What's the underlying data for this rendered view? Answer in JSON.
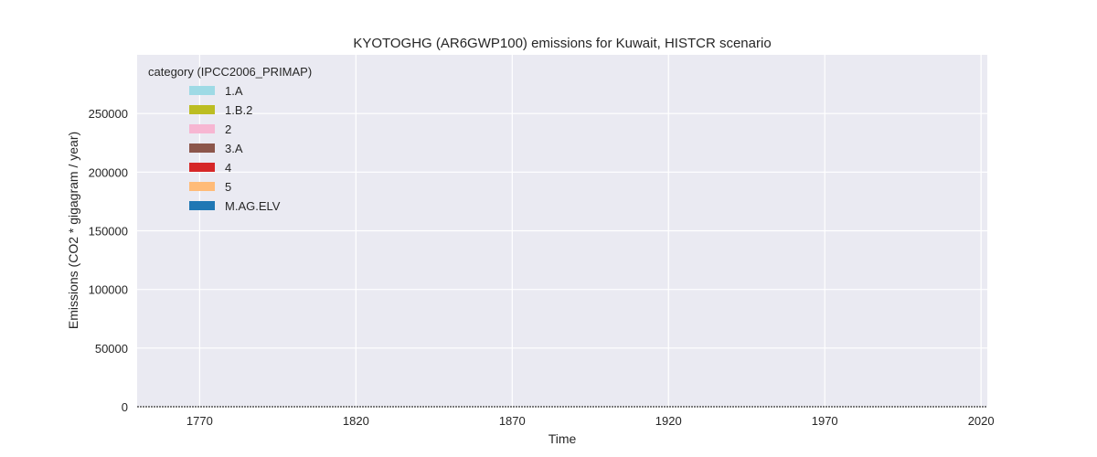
{
  "chart_data": {
    "type": "area",
    "stacked": true,
    "title": "KYOTOGHG (AR6GWP100) emissions for Kuwait, HISTCR scenario",
    "xlabel": "Time",
    "ylabel": "Emissions (CO2 * gigagram / year)",
    "xlim": [
      1750,
      2022
    ],
    "ylim": [
      0,
      300000
    ],
    "x_ticks": [
      1770,
      1820,
      1870,
      1920,
      1970,
      2020
    ],
    "y_ticks": [
      0,
      50000,
      100000,
      150000,
      200000,
      250000
    ],
    "grid": true,
    "legend": {
      "title": "category (IPCC2006_PRIMAP)",
      "placement": "top-left"
    },
    "x": [
      1750,
      1945,
      1946,
      1948,
      1950,
      1952,
      1953,
      1954,
      1955,
      1956,
      1957,
      1958,
      1959,
      1960,
      1961,
      1962,
      1963,
      1964,
      1965,
      1966,
      1967,
      1968,
      1969,
      1970,
      1971,
      1972,
      1973,
      1974,
      1975,
      1976,
      1977,
      1978,
      1979,
      1980,
      1981,
      1982,
      1983,
      1984,
      1985,
      1986,
      1987,
      1988,
      1989,
      1990,
      1991,
      1992,
      1993,
      1994,
      1995,
      1996,
      1997,
      1998,
      1999,
      2000,
      2001,
      2002,
      2003,
      2004,
      2005,
      2006,
      2007,
      2008,
      2009,
      2010,
      2011,
      2012,
      2013,
      2014,
      2015,
      2016,
      2017,
      2018,
      2019,
      2020,
      2021,
      2022
    ],
    "series": [
      {
        "name": "M.AG.ELV",
        "color": "#1f77b4",
        "values": [
          0,
          0,
          0,
          0,
          0,
          0,
          0,
          0,
          0,
          0,
          0,
          0,
          0,
          0,
          0,
          0,
          0,
          0,
          0,
          0,
          0,
          0,
          0,
          0,
          0,
          0,
          0,
          0,
          0,
          0,
          0,
          0,
          0,
          0,
          0,
          0,
          0,
          0,
          0,
          0,
          0,
          0,
          0,
          0,
          0,
          0,
          0,
          0,
          0,
          0,
          0,
          0,
          0,
          0,
          0,
          0,
          0,
          0,
          0,
          0,
          0,
          0,
          0,
          0,
          0,
          0,
          0,
          0,
          0,
          0,
          0,
          0,
          0,
          0,
          0,
          0
        ]
      },
      {
        "name": "5",
        "color": "#ffbb78",
        "values": [
          0,
          0,
          0,
          0,
          0,
          0,
          0,
          0,
          0,
          0,
          0,
          0,
          0,
          0,
          0,
          0,
          0,
          0,
          0,
          0,
          0,
          0,
          0,
          0,
          0,
          0,
          0,
          0,
          0,
          0,
          0,
          0,
          0,
          0,
          0,
          0,
          0,
          0,
          0,
          0,
          0,
          0,
          0,
          0,
          0,
          0,
          0,
          0,
          0,
          0,
          0,
          0,
          0,
          0,
          0,
          0,
          0,
          0,
          0,
          0,
          0,
          0,
          0,
          0,
          0,
          0,
          0,
          0,
          0,
          0,
          0,
          0,
          0,
          0,
          0,
          0
        ]
      },
      {
        "name": "4",
        "color": "#d62728",
        "values": [
          0,
          0,
          0,
          0,
          0,
          0,
          0,
          0,
          0,
          0,
          0,
          0,
          0,
          0,
          0,
          0,
          0,
          0,
          0,
          0,
          0,
          0,
          0,
          0,
          0,
          0,
          0,
          0,
          0,
          0,
          0,
          0,
          0,
          0,
          0,
          0,
          0,
          0,
          0,
          0,
          0,
          0,
          0,
          0,
          0,
          0,
          0,
          0,
          0,
          0,
          0,
          0,
          0,
          0,
          0,
          0,
          0,
          0,
          0,
          0,
          0,
          0,
          0,
          0,
          0,
          0,
          0,
          0,
          0,
          0,
          0,
          0,
          0,
          0,
          0,
          0
        ]
      },
      {
        "name": "3.A",
        "color": "#8c564b",
        "values": [
          0,
          0,
          0,
          0,
          0,
          0,
          0,
          0,
          0,
          0,
          0,
          0,
          0,
          0,
          0,
          0,
          0,
          0,
          0,
          0,
          0,
          0,
          0,
          0,
          0,
          0,
          0,
          0,
          0,
          0,
          0,
          0,
          0,
          0,
          0,
          0,
          0,
          0,
          0,
          0,
          0,
          0,
          0,
          0,
          0,
          0,
          0,
          0,
          0,
          0,
          0,
          0,
          0,
          0,
          0,
          0,
          0,
          0,
          0,
          0,
          0,
          0,
          0,
          0,
          0,
          0,
          0,
          0,
          0,
          0,
          0,
          0,
          0,
          0,
          0,
          0
        ]
      },
      {
        "name": "2",
        "color": "#f7b6d2",
        "values": [
          0,
          0,
          0,
          0,
          0,
          0,
          0,
          0,
          0,
          0,
          0,
          0,
          0,
          0,
          0,
          0,
          0,
          0,
          0,
          0,
          0,
          0,
          0,
          0,
          0,
          0,
          0,
          0,
          0,
          0,
          0,
          0,
          0,
          0,
          0,
          0,
          0,
          0,
          0,
          0,
          0,
          0,
          0,
          0,
          0,
          0,
          0,
          0,
          0,
          0,
          0,
          0,
          0,
          0,
          0,
          0,
          0,
          0,
          0,
          0,
          0,
          0,
          0,
          0,
          0,
          0,
          0,
          0,
          0,
          0,
          0,
          0,
          0,
          0,
          0,
          0
        ]
      },
      {
        "name": "1.B.2",
        "color": "#bcbd22",
        "values": [
          0,
          0,
          0,
          0,
          0,
          0,
          0,
          0,
          0,
          0,
          0,
          0,
          0,
          0,
          0,
          0,
          0,
          0,
          0,
          0,
          0,
          0,
          0,
          0,
          0,
          0,
          0,
          0,
          0,
          0,
          0,
          0,
          0,
          0,
          0,
          0,
          0,
          0,
          0,
          0,
          0,
          0,
          0,
          0,
          0,
          0,
          0,
          0,
          0,
          0,
          0,
          0,
          0,
          0,
          0,
          0,
          0,
          0,
          0,
          0,
          0,
          0,
          0,
          0,
          0,
          0,
          0,
          0,
          0,
          0,
          0,
          0,
          0,
          0,
          0,
          0
        ]
      },
      {
        "name": "1.A",
        "color": "#9edae5",
        "values": [
          0,
          0,
          0,
          0,
          0,
          0,
          0,
          0,
          0,
          0,
          0,
          0,
          0,
          0,
          0,
          0,
          0,
          0,
          0,
          0,
          0,
          0,
          0,
          0,
          0,
          0,
          0,
          0,
          0,
          0,
          0,
          0,
          0,
          0,
          0,
          0,
          0,
          0,
          0,
          0,
          0,
          0,
          0,
          0,
          0,
          0,
          0,
          0,
          0,
          0,
          0,
          0,
          0,
          0,
          0,
          0,
          0,
          0,
          0,
          0,
          0,
          0,
          0,
          0,
          0,
          0,
          0,
          0,
          0,
          0,
          0,
          0,
          0,
          0,
          0,
          0
        ]
      }
    ]
  }
}
